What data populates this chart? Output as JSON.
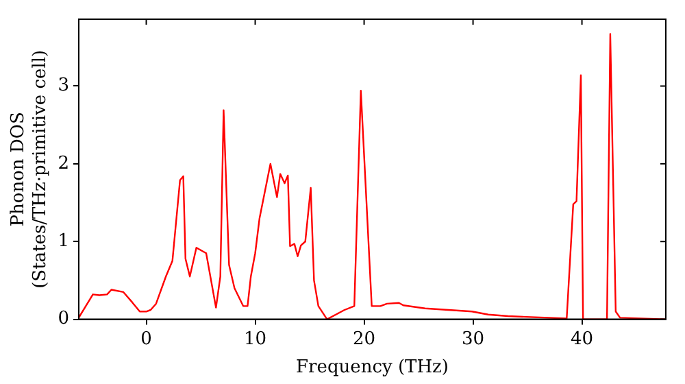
{
  "chart_data": {
    "type": "line",
    "xlabel": "Frequency (THz)",
    "ylabel": "Phonon DOS\n(States/THz·primitive cell)",
    "xlim": [
      -6.2,
      47.7
    ],
    "ylim": [
      0,
      3.86
    ],
    "xticks": [
      0,
      10,
      20,
      30,
      40
    ],
    "yticks": [
      0,
      1,
      2,
      3
    ],
    "grid": false,
    "legend": false,
    "marker": "none",
    "line_style": "solid",
    "series": [
      {
        "color": "#ff0000",
        "x": [
          -6.2,
          -4.9,
          -4.3,
          -3.6,
          -3.2,
          -2.1,
          -1.3,
          -0.6,
          0.0,
          0.4,
          0.9,
          1.8,
          2.4,
          3.1,
          3.4,
          3.6,
          4.0,
          4.6,
          5.5,
          6.4,
          6.8,
          7.1,
          7.6,
          8.1,
          8.9,
          9.3,
          9.6,
          10.0,
          10.4,
          11.4,
          12.0,
          12.3,
          12.7,
          13.0,
          13.2,
          13.6,
          13.9,
          14.2,
          14.6,
          15.1,
          15.4,
          15.8,
          16.6,
          18.2,
          19.1,
          19.7,
          20.7,
          21.5,
          22.1,
          23.2,
          23.6,
          25.6,
          29.9,
          31.4,
          33.2,
          38.6,
          39.2,
          39.5,
          39.9,
          40.1,
          42.3,
          42.6,
          43.1,
          43.5,
          47.7
        ],
        "values": [
          0.02,
          0.32,
          0.31,
          0.32,
          0.38,
          0.35,
          0.22,
          0.1,
          0.1,
          0.12,
          0.2,
          0.55,
          0.75,
          1.79,
          1.84,
          0.78,
          0.55,
          0.92,
          0.85,
          0.15,
          0.55,
          2.69,
          0.7,
          0.4,
          0.17,
          0.17,
          0.55,
          0.85,
          1.3,
          2.0,
          1.57,
          1.87,
          1.75,
          1.85,
          0.94,
          0.97,
          0.81,
          0.95,
          1.0,
          1.69,
          0.5,
          0.17,
          0.0,
          0.12,
          0.17,
          2.94,
          0.17,
          0.17,
          0.2,
          0.21,
          0.18,
          0.14,
          0.1,
          0.06,
          0.04,
          0.01,
          1.48,
          1.52,
          3.14,
          0.0,
          0.0,
          3.67,
          0.1,
          0.02,
          0.0
        ]
      }
    ]
  }
}
